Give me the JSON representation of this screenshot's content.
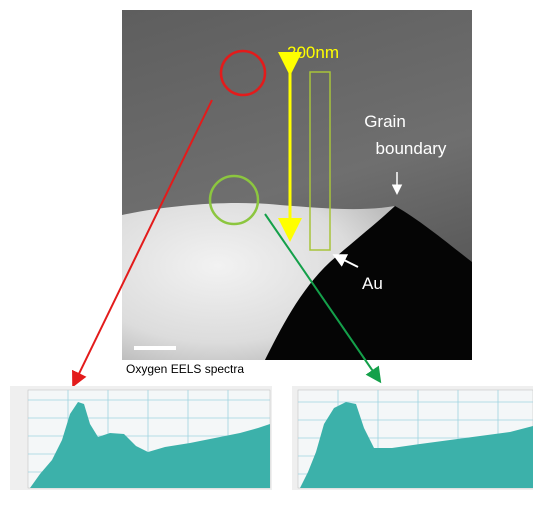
{
  "labels": {
    "scale": "200nm",
    "grain": "Grain",
    "boundary": "boundary",
    "au": "Au",
    "caption": "Oxygen EELS spectra"
  }
}
